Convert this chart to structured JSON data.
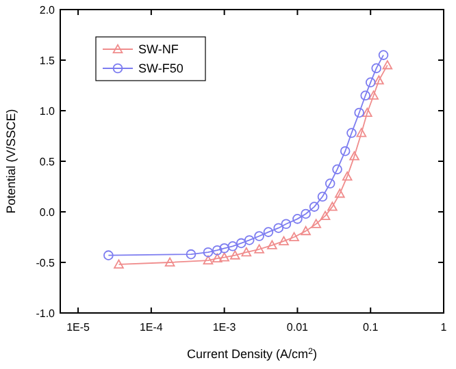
{
  "chart_data": {
    "type": "line",
    "xlabel": "Current Density (A/cm$^{2}$)",
    "ylabel": "Potential (V/SSCE)",
    "log": "x",
    "xlim": [
      5.7e-06,
      1
    ],
    "ylim": [
      -1,
      2
    ],
    "xticks": [
      {
        "value": 1e-05,
        "label": "1E-5"
      },
      {
        "value": 0.0001,
        "label": "1E-4"
      },
      {
        "value": 0.001,
        "label": "1E-3"
      },
      0.01,
      0.1,
      1
    ],
    "yticks": [
      {
        "value": -1,
        "label": "-1.0"
      },
      -0.5,
      {
        "value": 0,
        "label": "0.0"
      },
      0.5,
      {
        "value": 1,
        "label": "1.0"
      },
      1.5,
      {
        "value": 2,
        "label": "2.0"
      }
    ],
    "grid": false,
    "legend": "top left",
    "line_style": "solid",
    "series": [
      {
        "name": "SW-NF",
        "color": "#f08c8c",
        "marker": "triangle",
        "x": [
          3.6e-05,
          0.00018,
          0.0006,
          0.0008,
          0.001,
          0.0014,
          0.002,
          0.003,
          0.0045,
          0.0065,
          0.009,
          0.013,
          0.018,
          0.024,
          0.03,
          0.038,
          0.048,
          0.06,
          0.075,
          0.09,
          0.11,
          0.13,
          0.17
        ],
        "values": [
          -0.52,
          -0.5,
          -0.48,
          -0.46,
          -0.45,
          -0.43,
          -0.4,
          -0.37,
          -0.33,
          -0.29,
          -0.25,
          -0.19,
          -0.12,
          -0.04,
          0.05,
          0.18,
          0.35,
          0.55,
          0.78,
          0.98,
          1.15,
          1.3,
          1.45
        ]
      },
      {
        "name": "SW-F50",
        "color": "#7c7cf0",
        "marker": "circle",
        "x": [
          2.6e-05,
          0.00035,
          0.0006,
          0.0008,
          0.001,
          0.0013,
          0.0017,
          0.0022,
          0.003,
          0.004,
          0.0055,
          0.007,
          0.01,
          0.013,
          0.017,
          0.022,
          0.028,
          0.035,
          0.045,
          0.055,
          0.07,
          0.085,
          0.1,
          0.12,
          0.15
        ],
        "values": [
          -0.43,
          -0.42,
          -0.4,
          -0.38,
          -0.36,
          -0.34,
          -0.31,
          -0.28,
          -0.24,
          -0.2,
          -0.16,
          -0.12,
          -0.07,
          -0.02,
          0.05,
          0.15,
          0.28,
          0.42,
          0.6,
          0.78,
          0.98,
          1.15,
          1.28,
          1.42,
          1.55
        ]
      }
    ]
  }
}
